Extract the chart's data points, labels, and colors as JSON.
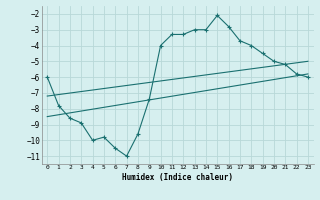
{
  "xlabel": "Humidex (Indice chaleur)",
  "background_color": "#d6efef",
  "grid_color": "#b8d8d8",
  "line_color": "#1a7070",
  "xlim": [
    -0.5,
    23.5
  ],
  "ylim": [
    -11.5,
    -1.5
  ],
  "yticks": [
    -2,
    -3,
    -4,
    -5,
    -6,
    -7,
    -8,
    -9,
    -10,
    -11
  ],
  "xticks": [
    0,
    1,
    2,
    3,
    4,
    5,
    6,
    7,
    8,
    9,
    10,
    11,
    12,
    13,
    14,
    15,
    16,
    17,
    18,
    19,
    20,
    21,
    22,
    23
  ],
  "line1_x": [
    0,
    1,
    2,
    3,
    4,
    5,
    6,
    7,
    8,
    9,
    10,
    11,
    12,
    13,
    14,
    15,
    16,
    17,
    18,
    19,
    20,
    21,
    22,
    23
  ],
  "line1_y": [
    -6.0,
    -7.8,
    -8.6,
    -8.9,
    -10.0,
    -9.8,
    -10.5,
    -11.0,
    -9.6,
    -7.4,
    -4.0,
    -3.3,
    -3.3,
    -3.0,
    -3.0,
    -2.1,
    -2.8,
    -3.7,
    -4.0,
    -4.5,
    -5.0,
    -5.2,
    -5.8,
    -6.0
  ],
  "line2_x": [
    0,
    23
  ],
  "line2_y": [
    -8.5,
    -5.8
  ],
  "line3_x": [
    0,
    23
  ],
  "line3_y": [
    -7.2,
    -5.0
  ]
}
